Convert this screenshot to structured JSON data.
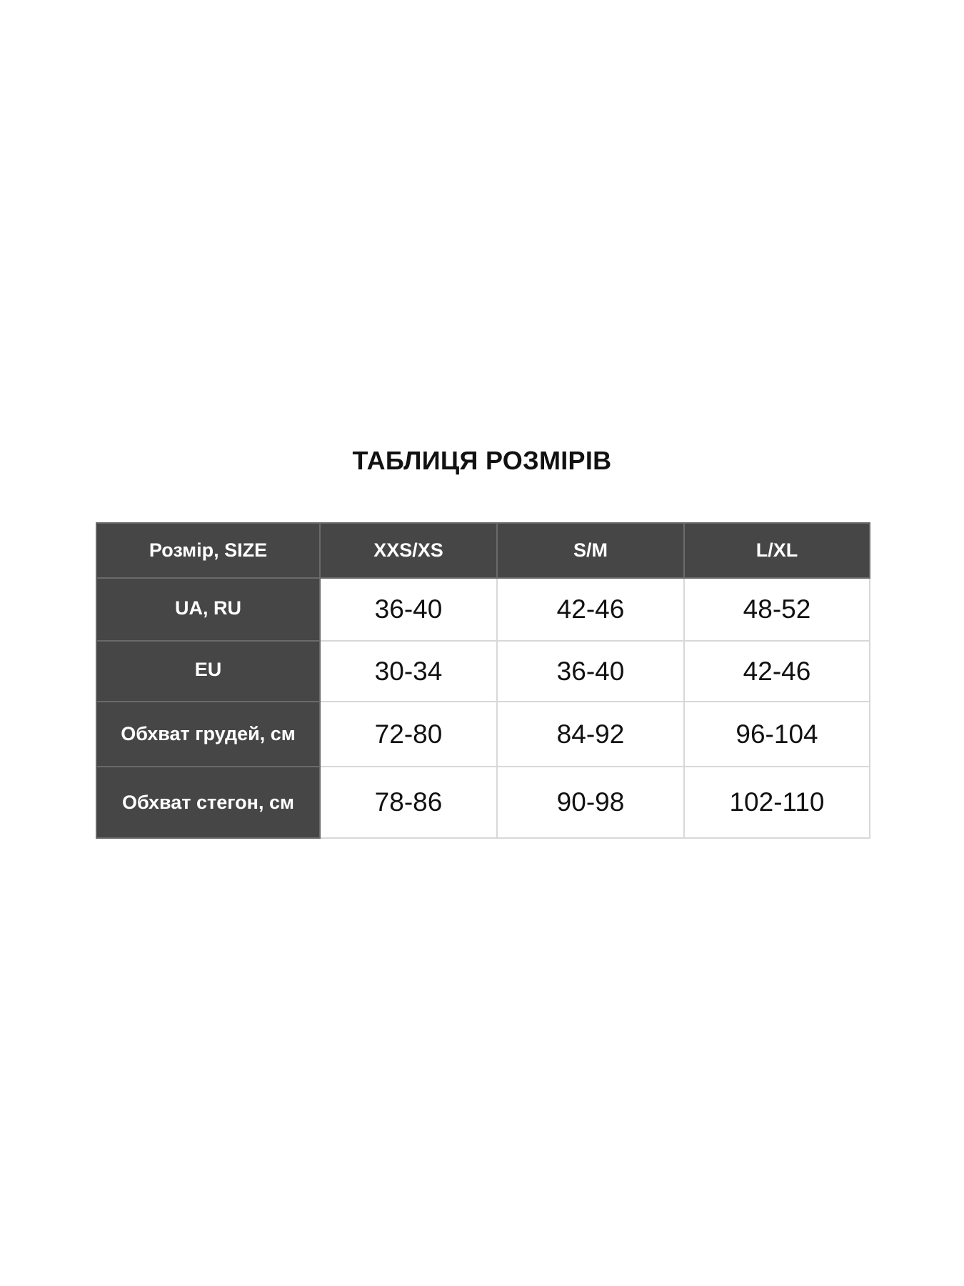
{
  "title": "ТАБЛИЦЯ РОЗМІРІВ",
  "table": {
    "headers": [
      "Розмір, SIZE",
      "XXS/XS",
      "S/M",
      "L/XL"
    ],
    "rows": [
      {
        "label": "UA, RU",
        "values": [
          "36-40",
          "42-46",
          "48-52"
        ]
      },
      {
        "label": "EU",
        "values": [
          "30-34",
          "36-40",
          "42-46"
        ]
      },
      {
        "label": "Обхват грудей, см",
        "values": [
          "72-80",
          "84-92",
          "96-104"
        ]
      },
      {
        "label": "Обхват стегон, см",
        "values": [
          "78-86",
          "90-98",
          "102-110"
        ]
      }
    ]
  },
  "colors": {
    "header_bg": "#464646",
    "header_text": "#ffffff",
    "border": "#d8d8d8"
  }
}
